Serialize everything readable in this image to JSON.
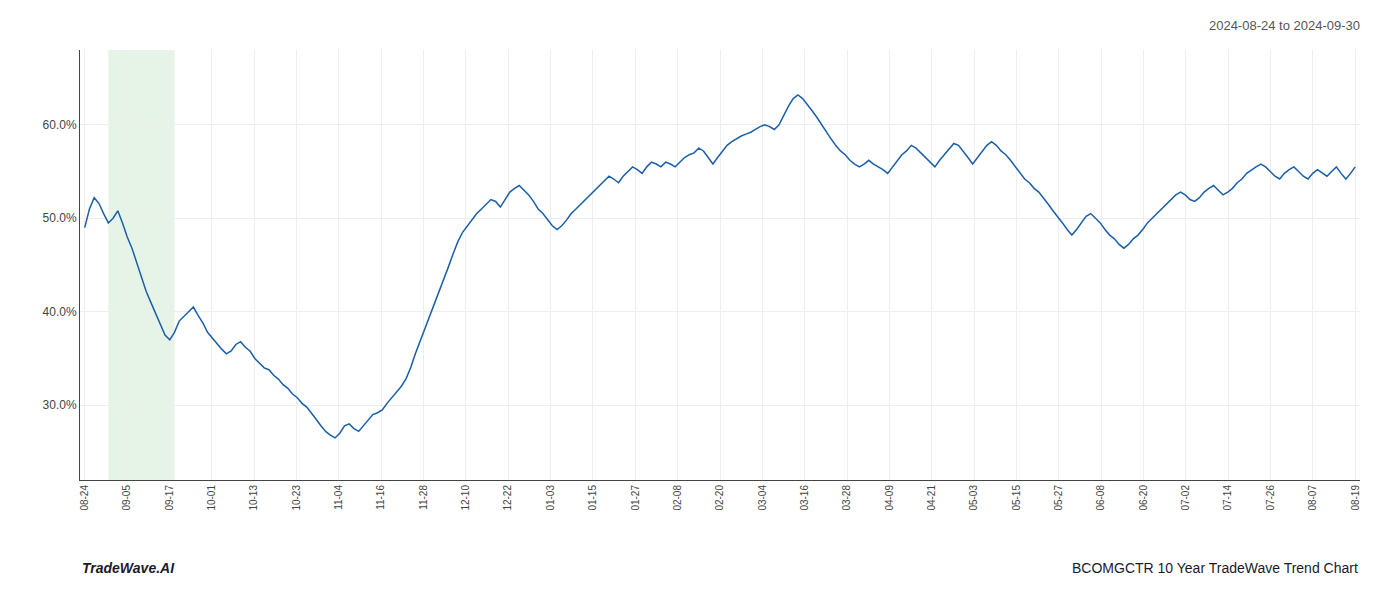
{
  "chart_data": {
    "type": "line",
    "title": "2024-08-24 to 2024-09-30",
    "annotations": [
      {
        "text": "TradeWave.AI"
      },
      {
        "text": "BCOMGCTR 10 Year TradeWave Trend Chart"
      }
    ],
    "color": "#1a5fa8",
    "grid": true,
    "shaded_x_range": {
      "from": 5,
      "to": 19,
      "color": "#c8e6c9"
    },
    "xlim": [
      -1,
      270
    ],
    "xticks": [
      {
        "value": 0,
        "label": "08-24"
      },
      {
        "value": 8.966666666666667,
        "label": "09-05"
      },
      {
        "value": 17.933333333333334,
        "label": "09-17"
      },
      {
        "value": 26.9,
        "label": "10-01"
      },
      {
        "value": 35.86666666666667,
        "label": "10-13"
      },
      {
        "value": 44.833333333333336,
        "label": "10-23"
      },
      {
        "value": 53.8,
        "label": "11-04"
      },
      {
        "value": 62.766666666666666,
        "label": "11-16"
      },
      {
        "value": 71.73333333333333,
        "label": "11-28"
      },
      {
        "value": 80.7,
        "label": "12-10"
      },
      {
        "value": 89.66666666666667,
        "label": "12-22"
      },
      {
        "value": 98.63333333333334,
        "label": "01-03"
      },
      {
        "value": 107.6,
        "label": "01-15"
      },
      {
        "value": 116.56666666666666,
        "label": "01-27"
      },
      {
        "value": 125.53333333333333,
        "label": "02-08"
      },
      {
        "value": 134.5,
        "label": "02-20"
      },
      {
        "value": 143.46666666666667,
        "label": "03-04"
      },
      {
        "value": 152.43333333333334,
        "label": "03-16"
      },
      {
        "value": 161.4,
        "label": "03-28"
      },
      {
        "value": 170.36666666666667,
        "label": "04-09"
      },
      {
        "value": 179.33333333333334,
        "label": "04-21"
      },
      {
        "value": 188.3,
        "label": "05-03"
      },
      {
        "value": 197.26666666666668,
        "label": "05-15"
      },
      {
        "value": 206.23333333333332,
        "label": "05-27"
      },
      {
        "value": 215.2,
        "label": "06-08"
      },
      {
        "value": 224.16666666666666,
        "label": "06-20"
      },
      {
        "value": 233.13333333333333,
        "label": "07-02"
      },
      {
        "value": 242.1,
        "label": "07-14"
      },
      {
        "value": 251.06666666666666,
        "label": "07-26"
      },
      {
        "value": 260.03333333333336,
        "label": "08-07"
      },
      {
        "value": 269,
        "label": "08-19"
      }
    ],
    "ylim": [
      0.22,
      0.68
    ],
    "yticks": [
      {
        "value": 0.3,
        "label": "30.0%"
      },
      {
        "value": 0.4,
        "label": "40.0%"
      },
      {
        "value": 0.5,
        "label": "50.0%"
      },
      {
        "value": 0.6,
        "label": "60.0%"
      }
    ],
    "x": [
      0,
      1,
      2,
      3,
      4,
      5,
      6,
      7,
      8,
      9,
      10,
      11,
      12,
      13,
      14,
      15,
      16,
      17,
      18,
      19,
      20,
      21,
      22,
      23,
      24,
      25,
      26,
      27,
      28,
      29,
      30,
      31,
      32,
      33,
      34,
      35,
      36,
      37,
      38,
      39,
      40,
      41,
      42,
      43,
      44,
      45,
      46,
      47,
      48,
      49,
      50,
      51,
      52,
      53,
      54,
      55,
      56,
      57,
      58,
      59,
      60,
      61,
      62,
      63,
      64,
      65,
      66,
      67,
      68,
      69,
      70,
      71,
      72,
      73,
      74,
      75,
      76,
      77,
      78,
      79,
      80,
      81,
      82,
      83,
      84,
      85,
      86,
      87,
      88,
      89,
      90,
      91,
      92,
      93,
      94,
      95,
      96,
      97,
      98,
      99,
      100,
      101,
      102,
      103,
      104,
      105,
      106,
      107,
      108,
      109,
      110,
      111,
      112,
      113,
      114,
      115,
      116,
      117,
      118,
      119,
      120,
      121,
      122,
      123,
      124,
      125,
      126,
      127,
      128,
      129,
      130,
      131,
      132,
      133,
      134,
      135,
      136,
      137,
      138,
      139,
      140,
      141,
      142,
      143,
      144,
      145,
      146,
      147,
      148,
      149,
      150,
      151,
      152,
      153,
      154,
      155,
      156,
      157,
      158,
      159,
      160,
      161,
      162,
      163,
      164,
      165,
      166,
      167,
      168,
      169,
      170,
      171,
      172,
      173,
      174,
      175,
      176,
      177,
      178,
      179,
      180,
      181,
      182,
      183,
      184,
      185,
      186,
      187,
      188,
      189,
      190,
      191,
      192,
      193,
      194,
      195,
      196,
      197,
      198,
      199,
      200,
      201,
      202,
      203,
      204,
      205,
      206,
      207,
      208,
      209,
      210,
      211,
      212,
      213,
      214,
      215,
      216,
      217,
      218,
      219,
      220,
      221,
      222,
      223,
      224,
      225,
      226,
      227,
      228,
      229,
      230,
      231,
      232,
      233,
      234,
      235,
      236,
      237,
      238,
      239,
      240,
      241,
      242,
      243,
      244,
      245,
      246,
      247,
      248,
      249,
      250,
      251,
      252,
      253,
      254,
      255,
      256,
      257,
      258,
      259,
      260,
      261,
      262,
      263,
      264,
      265,
      266,
      267,
      268,
      269
    ],
    "values": [
      0.49,
      0.51,
      0.522,
      0.516,
      0.505,
      0.495,
      0.5,
      0.508,
      0.495,
      0.48,
      0.468,
      0.452,
      0.438,
      0.422,
      0.41,
      0.398,
      0.385,
      0.375,
      0.37,
      0.378,
      0.39,
      0.395,
      0.4,
      0.405,
      0.396,
      0.388,
      0.378,
      0.372,
      0.365,
      0.36,
      0.355,
      0.358,
      0.365,
      0.368,
      0.362,
      0.358,
      0.35,
      0.345,
      0.34,
      0.338,
      0.332,
      0.328,
      0.322,
      0.318,
      0.312,
      0.308,
      0.302,
      0.298,
      0.292,
      0.285,
      0.278,
      0.272,
      0.268,
      0.265,
      0.27,
      0.278,
      0.28,
      0.275,
      0.272,
      0.278,
      0.285,
      0.29,
      0.292,
      0.295,
      0.302,
      0.308,
      0.315,
      0.32,
      0.328,
      0.34,
      0.355,
      0.368,
      0.382,
      0.395,
      0.408,
      0.422,
      0.435,
      0.448,
      0.462,
      0.475,
      0.485,
      0.492,
      0.498,
      0.505,
      0.51,
      0.515,
      0.52,
      0.518,
      0.512,
      0.52,
      0.528,
      0.532,
      0.535,
      0.53,
      0.525,
      0.518,
      0.51,
      0.505,
      0.498,
      0.492,
      0.488,
      0.492,
      0.498,
      0.505,
      0.51,
      0.515,
      0.52,
      0.525,
      0.53,
      0.535,
      0.54,
      0.545,
      0.542,
      0.538,
      0.545,
      0.55,
      0.555,
      0.552,
      0.548,
      0.555,
      0.56,
      0.558,
      0.555,
      0.56,
      0.558,
      0.555,
      0.56,
      0.565,
      0.568,
      0.57,
      0.575,
      0.572,
      0.565,
      0.558,
      0.565,
      0.572,
      0.578,
      0.582,
      0.585,
      0.588,
      0.59,
      0.592,
      0.595,
      0.598,
      0.6,
      0.598,
      0.595,
      0.6,
      0.61,
      0.62,
      0.628,
      0.632,
      0.628,
      0.622,
      0.615,
      0.608,
      0.6,
      0.592,
      0.585,
      0.578,
      0.572,
      0.568,
      0.562,
      0.558,
      0.555,
      0.558,
      0.562,
      0.558,
      0.555,
      0.552,
      0.548,
      0.555,
      0.562,
      0.568,
      0.572,
      0.578,
      0.575,
      0.57,
      0.565,
      0.56,
      0.555,
      0.562,
      0.568,
      0.575,
      0.58,
      0.578,
      0.572,
      0.565,
      0.558,
      0.565,
      0.572,
      0.578,
      0.582,
      0.578,
      0.572,
      0.568,
      0.562,
      0.555,
      0.548,
      0.542,
      0.538,
      0.532,
      0.528,
      0.522,
      0.515,
      0.508,
      0.502,
      0.495,
      0.488,
      0.482,
      0.488,
      0.495,
      0.502,
      0.505,
      0.5,
      0.495,
      0.488,
      0.482,
      0.478,
      0.472,
      0.468,
      0.472,
      0.478,
      0.482,
      0.488,
      0.495,
      0.5,
      0.505,
      0.51,
      0.515,
      0.52,
      0.525,
      0.528,
      0.525,
      0.52,
      0.518,
      0.522,
      0.528,
      0.532,
      0.535,
      0.53,
      0.525,
      0.528,
      0.532,
      0.538,
      0.542,
      0.548,
      0.552,
      0.555,
      0.558,
      0.555,
      0.55,
      0.545,
      0.542,
      0.548,
      0.552,
      0.555,
      0.55,
      0.545,
      0.542,
      0.548,
      0.552,
      0.548,
      0.545,
      0.55,
      0.555,
      0.548,
      0.542,
      0.548,
      0.555
    ]
  }
}
